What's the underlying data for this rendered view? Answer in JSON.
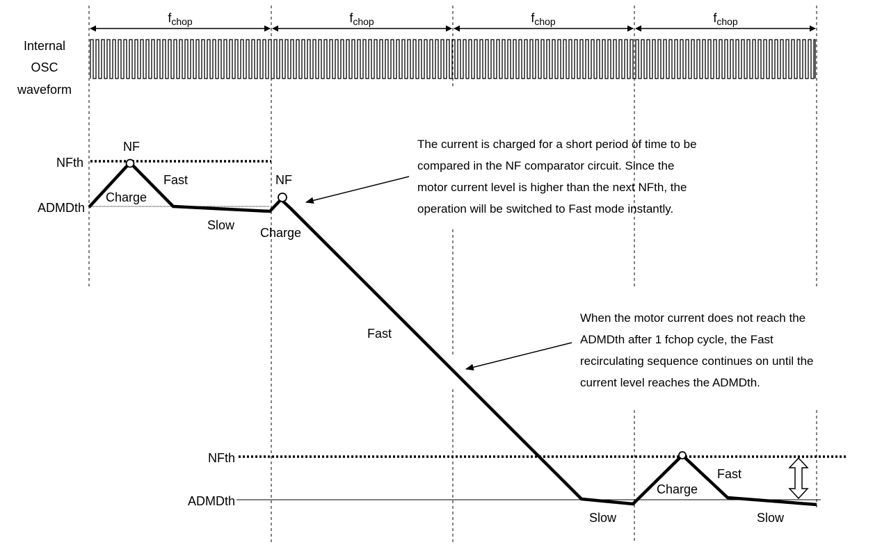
{
  "period_label": {
    "main": "f",
    "sub": "chop"
  },
  "osc_label": [
    "Internal",
    "OSC",
    "waveform"
  ],
  "thresholds": {
    "nfth": "NFth",
    "admdth": "ADMDth"
  },
  "segment_labels": {
    "nf_1": "NF",
    "charge_1": "Charge",
    "fast_1": "Fast",
    "slow_1": "Slow",
    "nf_2": "NF",
    "charge_2": "Charge",
    "fast_2": "Fast",
    "slow_2": "Slow",
    "charge_3": "Charge",
    "fast_3": "Fast",
    "slow_3": "Slow"
  },
  "annotation_1": [
    "The current is charged for a short period of time to be",
    "compared in the NF comparator circuit. Since the",
    "motor current level is higher than the next NFth, the",
    "operation will be switched to Fast mode instantly."
  ],
  "annotation_2": [
    "When the motor current does not reach the",
    "ADMDth after 1 fchop cycle, the Fast",
    "recirculating sequence continues on until the",
    "current level reaches the ADMDth."
  ]
}
